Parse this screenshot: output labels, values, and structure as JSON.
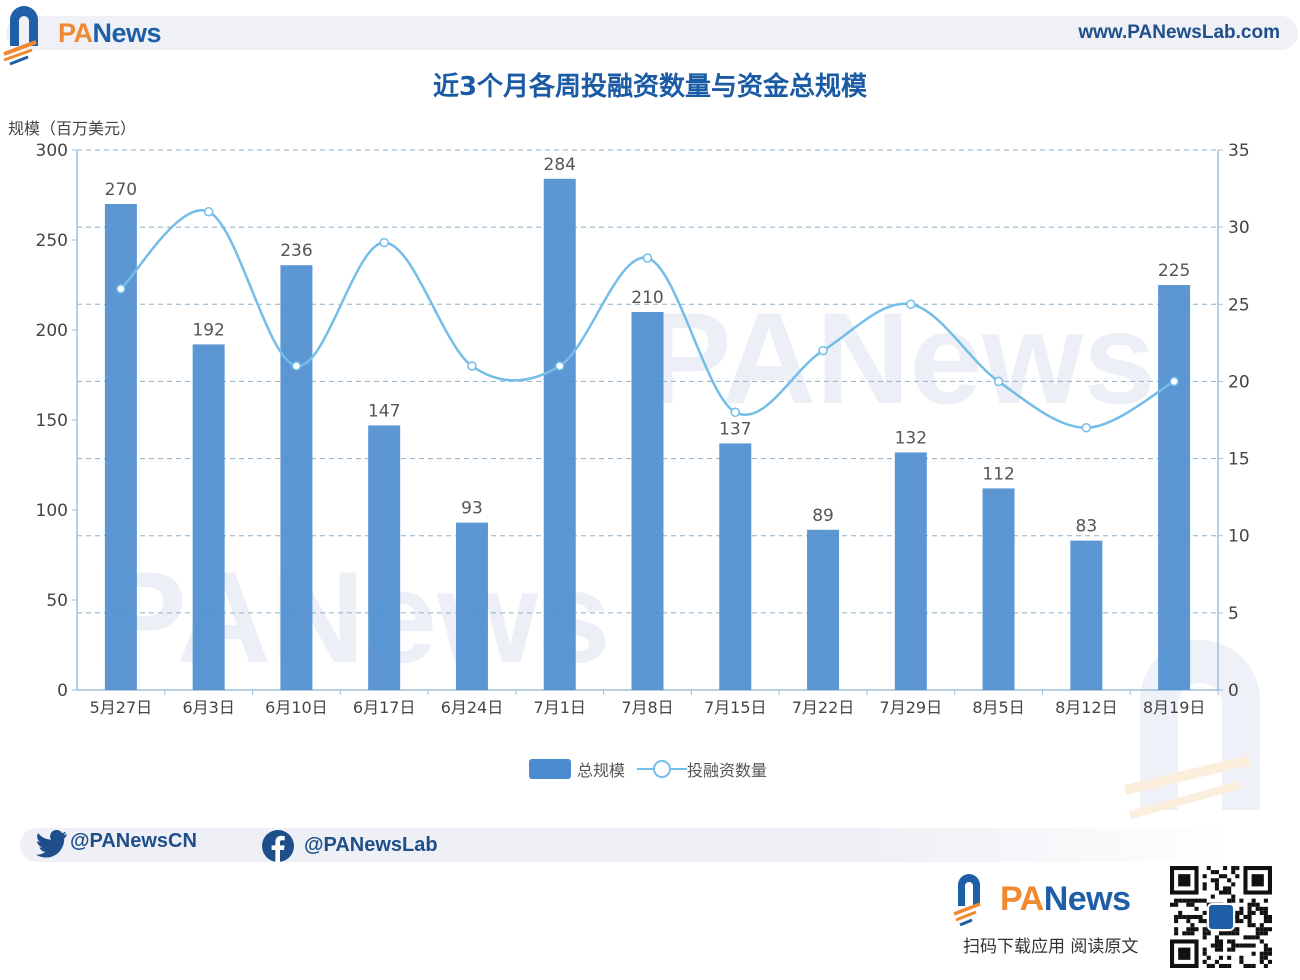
{
  "header": {
    "brand_pa": "PA",
    "brand_news": "News",
    "site_url": "www.PANewsLab.com"
  },
  "chart_data": {
    "type": "bar+line",
    "title": "近3个月各周投融资数量与资金总规模",
    "ylabel_left": "规模（百万美元）",
    "ylim_left": [
      0,
      300
    ],
    "yticks_left": [
      0,
      50,
      100,
      150,
      200,
      250,
      300
    ],
    "ylim_right": [
      0,
      35
    ],
    "yticks_right": [
      0,
      5,
      10,
      15,
      20,
      25,
      30,
      35
    ],
    "grid": true,
    "legend_position": "bottom-center",
    "categories": [
      "5月27日",
      "6月3日",
      "6月10日",
      "6月17日",
      "6月24日",
      "7月1日",
      "7月8日",
      "7月15日",
      "7月22日",
      "7月29日",
      "8月5日",
      "8月12日",
      "8月19日"
    ],
    "series": [
      {
        "name": "总规模",
        "type": "bar",
        "axis": "left",
        "color": "#4a8ccf",
        "values": [
          270,
          192,
          236,
          147,
          93,
          284,
          210,
          137,
          89,
          132,
          112,
          83,
          225
        ]
      },
      {
        "name": "投融资数量",
        "type": "line",
        "axis": "right",
        "color": "#74bde8",
        "smooth": true,
        "values": [
          26,
          31,
          21,
          29,
          21,
          21,
          28,
          18,
          22,
          25,
          20,
          17,
          20
        ]
      }
    ]
  },
  "footer": {
    "twitter_handle": "@PANewsCN",
    "facebook_handle": "@PANewsLab",
    "brand_pa": "PA",
    "brand_news": "News",
    "download_text": "扫码下载应用  阅读原文"
  },
  "colors": {
    "brand_blue": "#1f5fa8",
    "brand_orange": "#f0892f",
    "bar": "#4a8ccf",
    "line": "#74bde8"
  }
}
